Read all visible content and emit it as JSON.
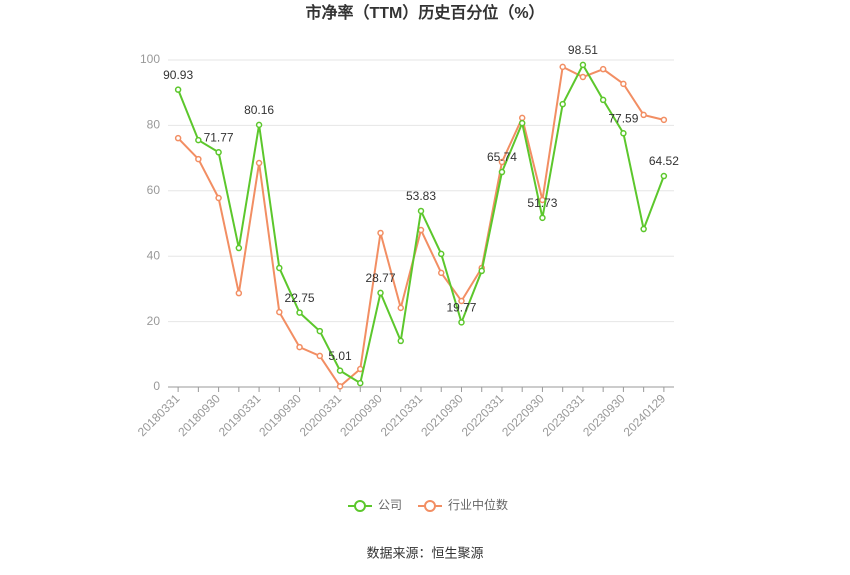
{
  "chart_data": {
    "type": "line",
    "title": "市净率（TTM）历史百分位（%）",
    "source": "数据来源：恒生聚源",
    "categories": [
      "20180331",
      null,
      "20180930",
      null,
      "20190331",
      null,
      "20190930",
      null,
      "20200331",
      null,
      "20200930",
      null,
      "20210331",
      null,
      "20210930",
      null,
      "20220331",
      null,
      "20220930",
      null,
      "20230331",
      null,
      "20230930",
      null,
      "20240129"
    ],
    "series": [
      {
        "name": "公司",
        "color": "#5cc72c",
        "values": [
          90.93,
          75.5,
          71.77,
          42.5,
          80.16,
          36.4,
          22.75,
          17.1,
          5.01,
          1.2,
          28.77,
          14.1,
          53.83,
          40.7,
          19.77,
          35.5,
          65.74,
          80.7,
          51.73,
          86.5,
          98.51,
          87.8,
          77.59,
          48.3,
          64.52
        ]
      },
      {
        "name": "行业中位数",
        "color": "#f28e63",
        "values": [
          76.1,
          69.7,
          57.8,
          28.7,
          68.5,
          22.9,
          12.2,
          9.5,
          0.2,
          5.5,
          47.1,
          24.2,
          48.0,
          34.9,
          26.3,
          36.4,
          68.8,
          82.3,
          57.2,
          97.9,
          94.8,
          97.2,
          92.7,
          83.2,
          81.7
        ]
      }
    ],
    "ylim": [
      0,
      100
    ],
    "yticks": [
      0,
      20,
      40,
      60,
      80,
      100
    ],
    "grid": true,
    "legend": "bottom"
  }
}
